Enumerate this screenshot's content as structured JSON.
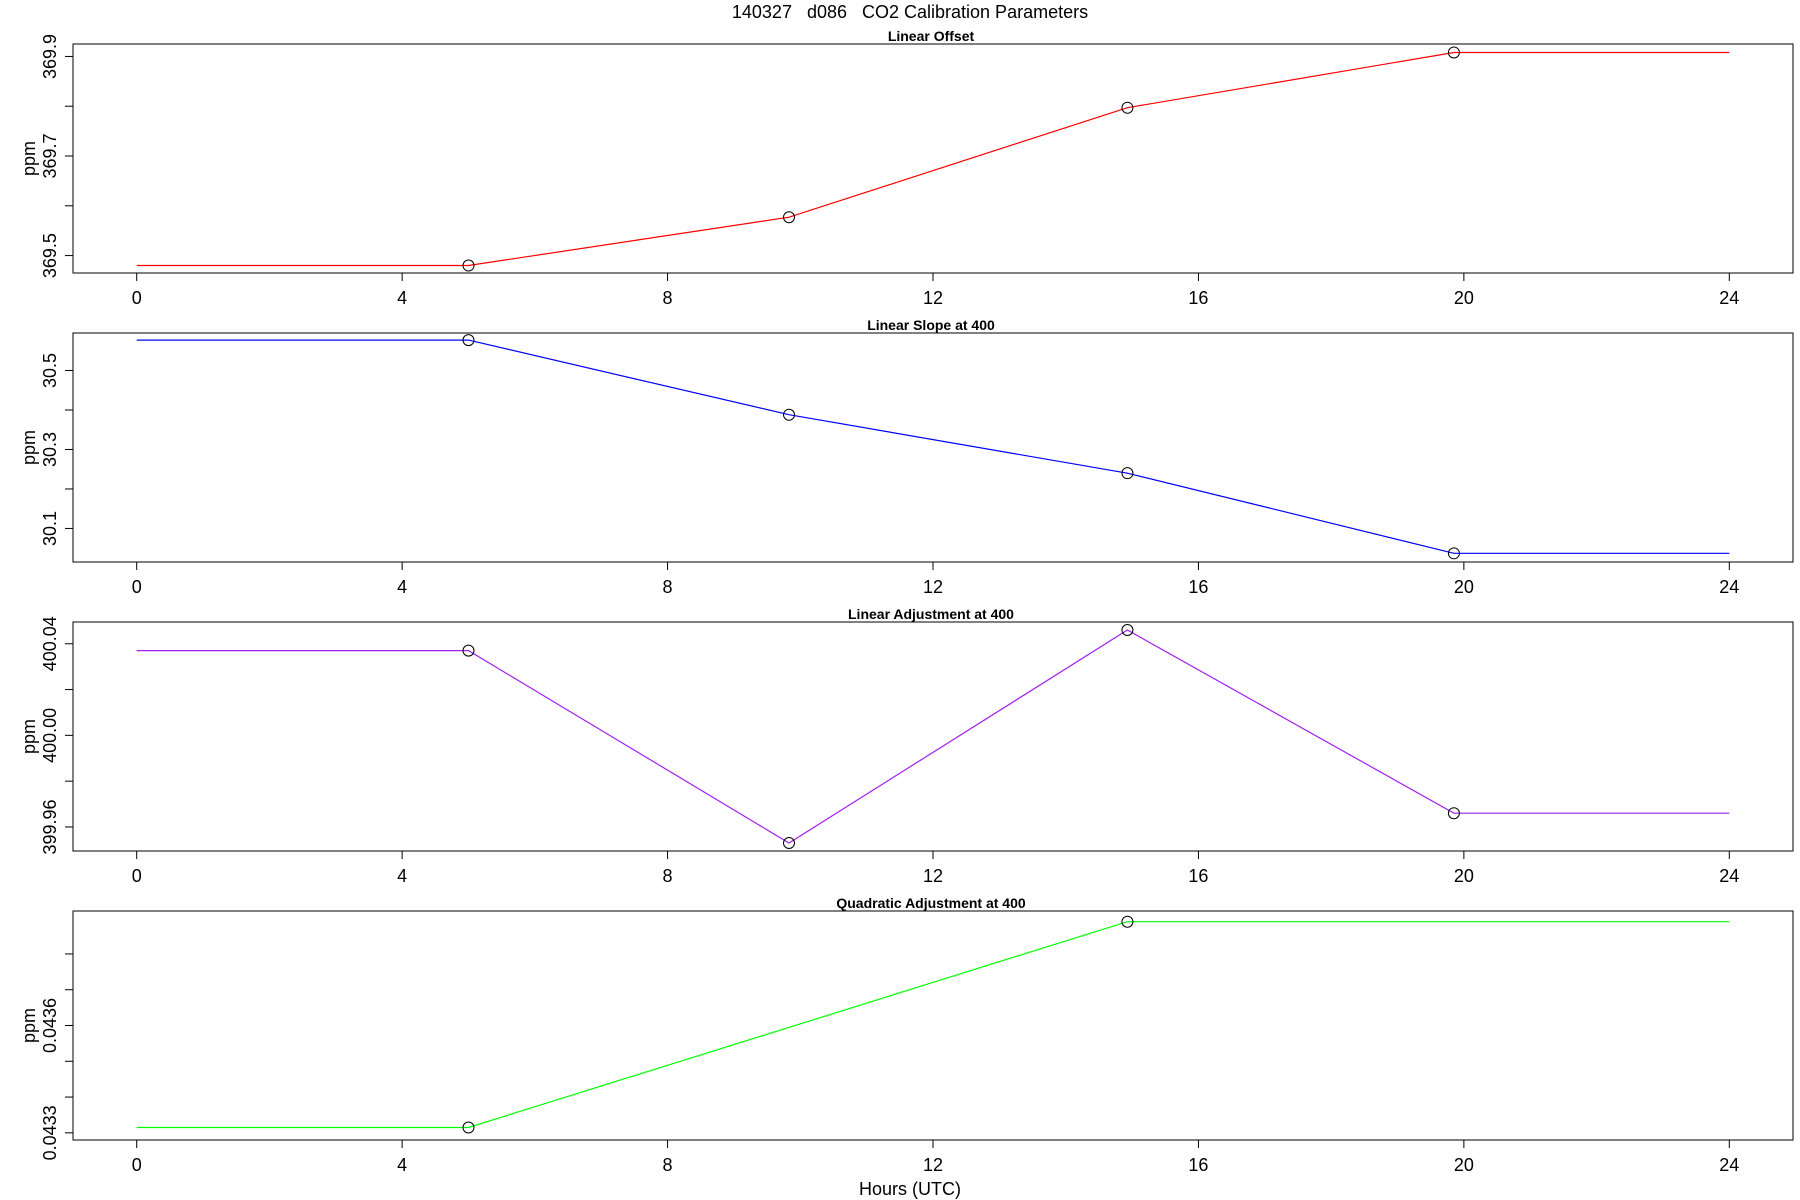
{
  "figure": {
    "title": "140327   d086   CO2 Calibration Parameters",
    "xlabel": "Hours (UTC)"
  },
  "chart_data": [
    {
      "type": "line",
      "title": "Linear Offset",
      "ylabel": "ppm",
      "color": "#ff0000",
      "xlim": [
        -0.96,
        24.96
      ],
      "ylim": [
        369.465,
        369.925
      ],
      "xticks": [
        0,
        4,
        8,
        12,
        16,
        20,
        24
      ],
      "xtick_labels": [
        "0",
        "4",
        "8",
        "12",
        "16",
        "20",
        "24"
      ],
      "yticks": [
        369.5,
        369.6,
        369.7,
        369.8,
        369.9
      ],
      "ytick_labels": [
        {
          "value": 369.5,
          "label": "369.5"
        },
        {
          "value": 369.7,
          "label": "369.7"
        },
        {
          "value": 369.9,
          "label": "369.9"
        }
      ],
      "x": [
        0,
        5,
        9.83,
        14.93,
        19.85,
        24
      ],
      "y": [
        369.48,
        369.48,
        369.577,
        369.797,
        369.908,
        369.908
      ],
      "markers": [
        false,
        true,
        true,
        true,
        true,
        false
      ]
    },
    {
      "type": "line",
      "title": "Linear Slope at 400",
      "ylabel": "ppm",
      "color": "#0000ff",
      "xlim": [
        -0.96,
        24.96
      ],
      "ylim": [
        30.015,
        30.595
      ],
      "xticks": [
        0,
        4,
        8,
        12,
        16,
        20,
        24
      ],
      "xtick_labels": [
        "0",
        "4",
        "8",
        "12",
        "16",
        "20",
        "24"
      ],
      "yticks": [
        30.1,
        30.2,
        30.3,
        30.4,
        30.5
      ],
      "ytick_labels": [
        {
          "value": 30.1,
          "label": "30.1"
        },
        {
          "value": 30.3,
          "label": "30.3"
        },
        {
          "value": 30.5,
          "label": "30.5"
        }
      ],
      "x": [
        0,
        5,
        9.83,
        14.93,
        19.85,
        24
      ],
      "y": [
        30.577,
        30.577,
        30.388,
        30.24,
        30.037,
        30.037
      ],
      "markers": [
        false,
        true,
        true,
        true,
        true,
        false
      ]
    },
    {
      "type": "line",
      "title": "Linear Adjustment at 400",
      "ylabel": "ppm",
      "color": "#a020f0",
      "xlim": [
        -0.96,
        24.96
      ],
      "ylim": [
        399.9495,
        400.0495
      ],
      "xticks": [
        0,
        4,
        8,
        12,
        16,
        20,
        24
      ],
      "xtick_labels": [
        "0",
        "4",
        "8",
        "12",
        "16",
        "20",
        "24"
      ],
      "yticks": [
        399.96,
        399.98,
        400.0,
        400.02,
        400.04
      ],
      "ytick_labels": [
        {
          "value": 399.96,
          "label": "399.96"
        },
        {
          "value": 400.0,
          "label": "400.00"
        },
        {
          "value": 400.04,
          "label": "400.04"
        }
      ],
      "x": [
        0,
        5,
        9.83,
        14.93,
        19.85,
        24
      ],
      "y": [
        400.037,
        400.037,
        399.953,
        400.046,
        399.966,
        399.966
      ],
      "markers": [
        false,
        true,
        true,
        true,
        true,
        false
      ]
    },
    {
      "type": "line",
      "title": "Quadratic Adjustment at 400",
      "ylabel": "ppm",
      "color": "#00ff00",
      "xlim": [
        -0.96,
        24.96
      ],
      "ylim": [
        0.04328,
        0.04392
      ],
      "xticks": [
        0,
        4,
        8,
        12,
        16,
        20,
        24
      ],
      "xtick_labels": [
        "0",
        "4",
        "8",
        "12",
        "16",
        "20",
        "24"
      ],
      "yticks": [
        0.0433,
        0.0434,
        0.0435,
        0.0436,
        0.0437,
        0.0438
      ],
      "ytick_labels": [
        {
          "value": 0.0433,
          "label": "0.0433"
        },
        {
          "value": 0.0436,
          "label": "0.0436"
        }
      ],
      "x": [
        0,
        5,
        14.93,
        24
      ],
      "y": [
        0.043315,
        0.043315,
        0.04389,
        0.04389
      ],
      "markers": [
        false,
        true,
        true,
        false
      ]
    }
  ]
}
